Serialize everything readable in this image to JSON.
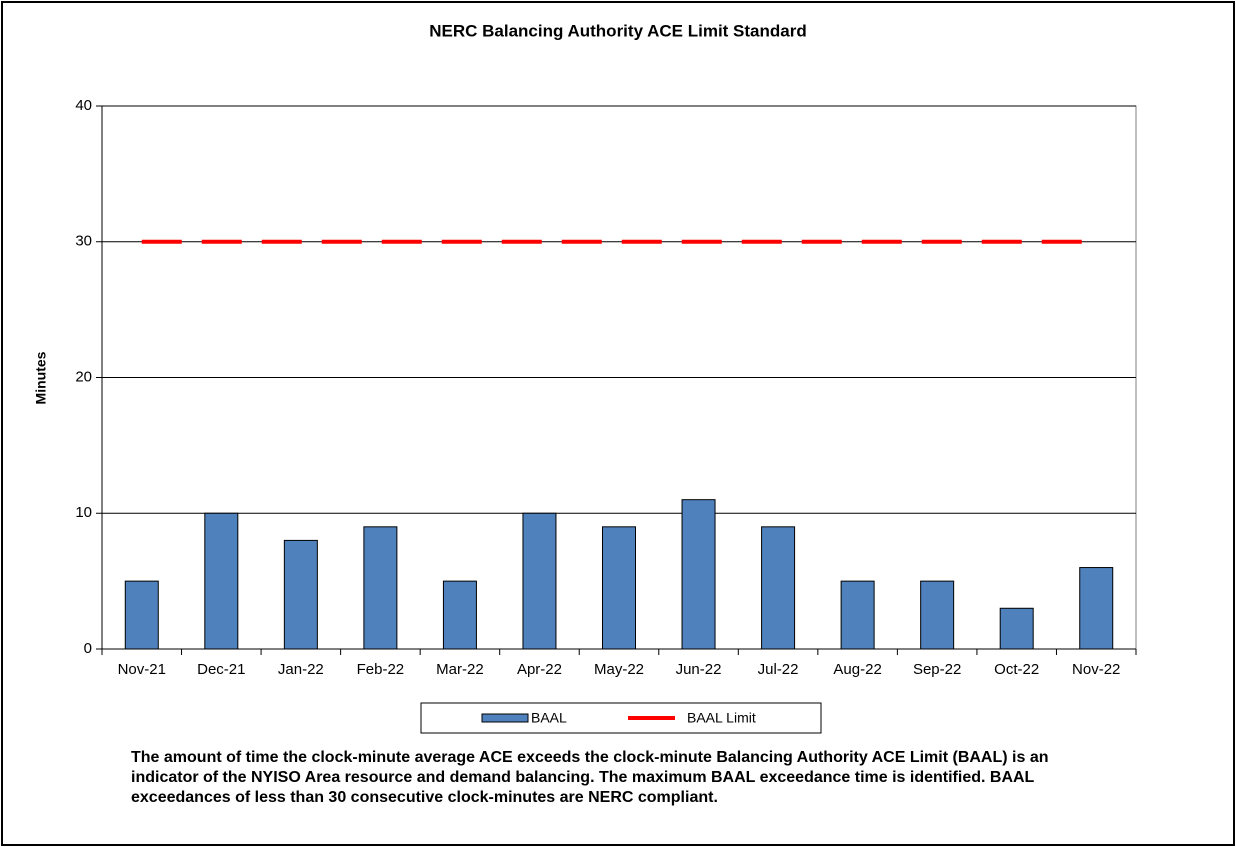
{
  "chart_data": {
    "type": "bar",
    "title": "NERC Balancing Authority ACE Limit Standard",
    "y_label": "Minutes",
    "categories": [
      "Nov-21",
      "Dec-21",
      "Jan-22",
      "Feb-22",
      "Mar-22",
      "Apr-22",
      "May-22",
      "Jun-22",
      "Jul-22",
      "Aug-22",
      "Sep-22",
      "Oct-22",
      "Nov-22"
    ],
    "series": [
      {
        "name": "BAAL",
        "type": "bar",
        "color": "#4f81bd",
        "values": [
          5,
          10,
          8,
          9,
          5,
          10,
          9,
          11,
          9,
          5,
          5,
          3,
          6
        ]
      },
      {
        "name": "BAAL Limit",
        "type": "line",
        "color": "#ff0000",
        "values": [
          30,
          30,
          30,
          30,
          30,
          30,
          30,
          30,
          30,
          30,
          30,
          30,
          30
        ]
      }
    ],
    "ylim": [
      0,
      40
    ],
    "yticks": [
      0,
      10,
      20,
      30,
      40
    ],
    "grid": true,
    "note": "The  amount of time the clock-minute average ACE exceeds the clock-minute Balancing Authority ACE Limit (BAAL) is an indicator of the NYISO Area resource and demand balancing. The maximum BAAL exceedance time is identified. BAAL exceedances of less than 30 consecutive clock-minutes are NERC compliant."
  }
}
